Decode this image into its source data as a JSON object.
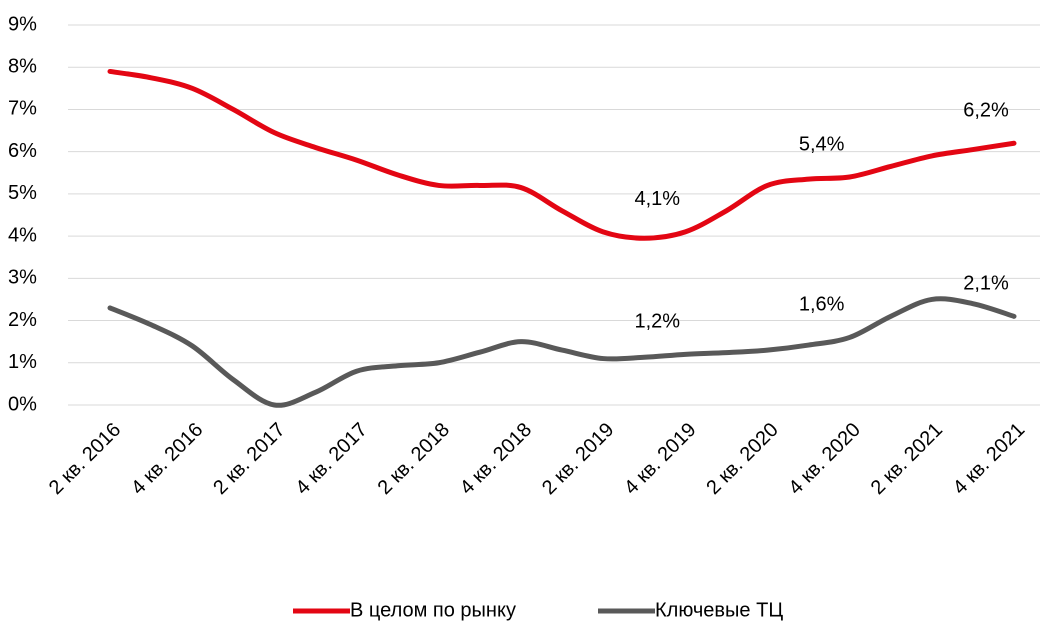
{
  "chart_data": {
    "type": "line",
    "categories": [
      "2 кв. 2016",
      null,
      "4 кв. 2016",
      null,
      "2 кв. 2017",
      null,
      "4 кв. 2017",
      null,
      "2 кв. 2018",
      null,
      "4 кв. 2018",
      null,
      "2 кв. 2019",
      null,
      "4 кв. 2019",
      null,
      "2 кв. 2020",
      null,
      "4 кв. 2020",
      null,
      "2 кв. 2021",
      null,
      "4 кв. 2021"
    ],
    "series": [
      {
        "name": "В целом по рынку",
        "color": "#e30613",
        "values": [
          7.9,
          7.75,
          7.5,
          7.0,
          6.45,
          6.1,
          5.8,
          5.45,
          5.2,
          5.2,
          5.15,
          4.6,
          4.1,
          3.95,
          4.1,
          4.6,
          5.2,
          5.35,
          5.4,
          5.65,
          5.9,
          6.05,
          6.2
        ],
        "value_labels": [
          null,
          null,
          null,
          null,
          null,
          null,
          null,
          null,
          null,
          null,
          null,
          null,
          null,
          null,
          "4,1%",
          null,
          null,
          null,
          "5,4%",
          null,
          null,
          null,
          "6,2%"
        ]
      },
      {
        "name": "Ключевые ТЦ",
        "color": "#595959",
        "values": [
          2.3,
          1.9,
          1.4,
          0.6,
          0.0,
          0.3,
          0.8,
          0.93,
          1.0,
          1.25,
          1.5,
          1.3,
          1.1,
          1.13,
          1.2,
          1.24,
          1.3,
          1.42,
          1.6,
          2.1,
          2.5,
          2.4,
          2.1
        ],
        "value_labels": [
          null,
          null,
          null,
          null,
          null,
          null,
          null,
          null,
          null,
          null,
          null,
          null,
          null,
          null,
          "1,2%",
          null,
          null,
          null,
          "1,6%",
          null,
          null,
          null,
          "2,1%"
        ]
      }
    ],
    "ylim": [
      0,
      9
    ],
    "yticks": [
      {
        "value": 0,
        "label": "0%"
      },
      {
        "value": 1,
        "label": "1%"
      },
      {
        "value": 2,
        "label": "2%"
      },
      {
        "value": 3,
        "label": "3%"
      },
      {
        "value": 4,
        "label": "4%"
      },
      {
        "value": 5,
        "label": "5%"
      },
      {
        "value": 6,
        "label": "6%"
      },
      {
        "value": 7,
        "label": "7%"
      },
      {
        "value": 8,
        "label": "8%"
      },
      {
        "value": 9,
        "label": "9%"
      }
    ],
    "grid": true
  }
}
